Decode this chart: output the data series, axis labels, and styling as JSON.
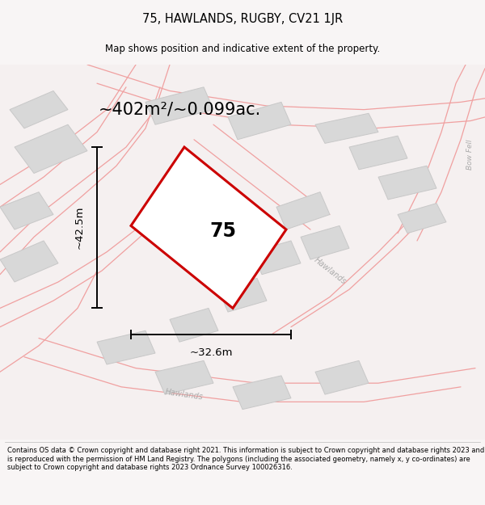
{
  "title": "75, HAWLANDS, RUGBY, CV21 1JR",
  "subtitle": "Map shows position and indicative extent of the property.",
  "area_label": "~402m²/~0.099ac.",
  "plot_number": "75",
  "width_label": "~32.6m",
  "height_label": "~42.5m",
  "footer": "Contains OS data © Crown copyright and database right 2021. This information is subject to Crown copyright and database rights 2023 and is reproduced with the permission of HM Land Registry. The polygons (including the associated geometry, namely x, y co-ordinates) are subject to Crown copyright and database rights 2023 Ordnance Survey 100026316.",
  "bg_color": "#f8f5f5",
  "map_bg": "#f5f0f0",
  "plot_color": "#cc0000",
  "plot_fill": "#ffffff",
  "road_color": "#f0a0a0",
  "building_color": "#d8d8d8",
  "building_edge": "#c8c8c8",
  "annotation_color": "#111111",
  "fig_width": 6.0,
  "fig_height": 6.25,
  "title_fontsize": 10.5,
  "subtitle_fontsize": 8.5,
  "area_fontsize": 15,
  "plot_num_fontsize": 17,
  "dim_fontsize": 9.5,
  "road_label_fontsize": 7,
  "footer_fontsize": 6.0
}
